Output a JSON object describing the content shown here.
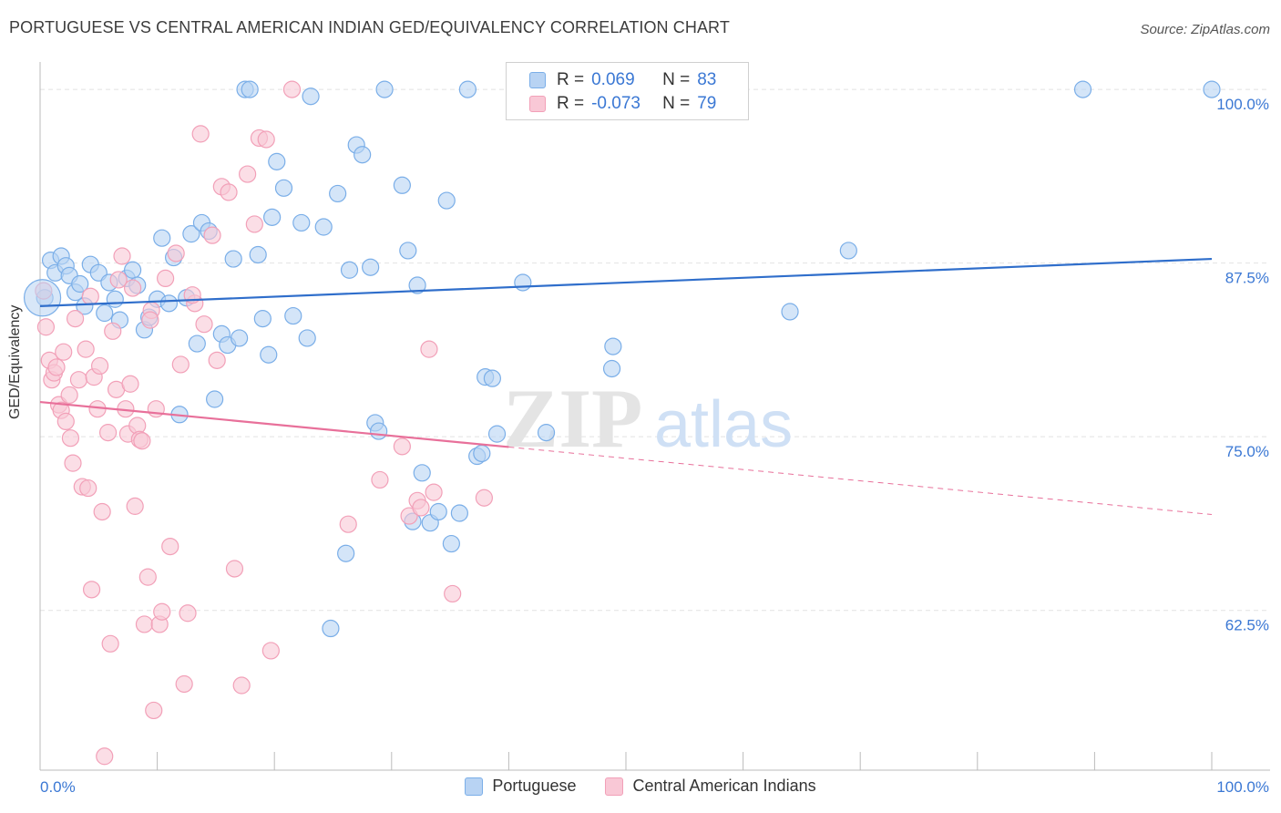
{
  "title": "PORTUGUESE VS CENTRAL AMERICAN INDIAN GED/EQUIVALENCY CORRELATION CHART",
  "source": "Source: ZipAtlas.com",
  "watermark": {
    "zip": "ZIP",
    "atlas": "atlas"
  },
  "legend_top": {
    "r_label": "R =",
    "n_label": "N =",
    "rows": [
      {
        "series": "Portuguese",
        "r": "0.069",
        "n": "83",
        "color": "#7aaee8"
      },
      {
        "series": "Central American Indians",
        "r": "-0.073",
        "n": "79",
        "color": "#f2a0b8"
      }
    ]
  },
  "colors": {
    "blue_fill": "#b8d3f3",
    "blue_stroke": "#7aaee8",
    "blue_line": "#2f6ecb",
    "pink_fill": "#f9c8d6",
    "pink_stroke": "#f2a0b8",
    "pink_line": "#e8709a",
    "tick_label": "#3b78d4",
    "grid": "#e2e2e2"
  },
  "chart_data": {
    "type": "scatter",
    "title": "PORTUGUESE VS CENTRAL AMERICAN INDIAN GED/EQUIVALENCY CORRELATION CHART",
    "xlabel": "",
    "ylabel": "GED/Equivalency",
    "xlim": [
      0,
      100
    ],
    "ylim": [
      51,
      102.5
    ],
    "x_tick_labels": [
      "0.0%",
      "100.0%"
    ],
    "y_ticks": [
      62.5,
      75.0,
      87.5,
      100.0
    ],
    "y_tick_labels": [
      "62.5%",
      "75.0%",
      "87.5%",
      "100.0%"
    ],
    "grid": true,
    "legend_position": "top-center",
    "series": [
      {
        "name": "Portuguese",
        "trend": {
          "x": [
            0,
            100
          ],
          "y": [
            84.4,
            87.8
          ],
          "dashed_from": null
        },
        "points": [
          [
            0.4,
            85.0
          ],
          [
            0.9,
            87.7
          ],
          [
            1.3,
            86.8
          ],
          [
            1.8,
            88.0
          ],
          [
            2.2,
            87.3
          ],
          [
            2.5,
            86.6
          ],
          [
            3.0,
            85.4
          ],
          [
            3.4,
            86.0
          ],
          [
            3.8,
            84.4
          ],
          [
            4.3,
            87.4
          ],
          [
            5.0,
            86.8
          ],
          [
            5.5,
            83.9
          ],
          [
            5.9,
            86.1
          ],
          [
            6.4,
            84.9
          ],
          [
            6.8,
            83.4
          ],
          [
            7.4,
            86.4
          ],
          [
            7.9,
            87.0
          ],
          [
            8.3,
            85.9
          ],
          [
            8.9,
            82.7
          ],
          [
            9.3,
            83.6
          ],
          [
            10.0,
            84.9
          ],
          [
            10.4,
            89.3
          ],
          [
            11.0,
            84.6
          ],
          [
            11.4,
            87.9
          ],
          [
            11.9,
            76.6
          ],
          [
            12.5,
            85.0
          ],
          [
            12.9,
            89.6
          ],
          [
            13.4,
            81.7
          ],
          [
            13.8,
            90.4
          ],
          [
            14.4,
            89.8
          ],
          [
            14.9,
            77.7
          ],
          [
            15.5,
            82.4
          ],
          [
            16.0,
            81.6
          ],
          [
            16.5,
            87.8
          ],
          [
            17.0,
            82.1
          ],
          [
            17.5,
            100.0
          ],
          [
            17.9,
            100.0
          ],
          [
            18.6,
            88.1
          ],
          [
            19.0,
            83.5
          ],
          [
            19.5,
            80.9
          ],
          [
            19.8,
            90.8
          ],
          [
            20.2,
            94.8
          ],
          [
            20.8,
            92.9
          ],
          [
            21.6,
            83.7
          ],
          [
            22.3,
            90.4
          ],
          [
            22.8,
            82.1
          ],
          [
            23.1,
            99.5
          ],
          [
            24.2,
            90.1
          ],
          [
            25.4,
            92.5
          ],
          [
            26.1,
            66.6
          ],
          [
            26.4,
            87.0
          ],
          [
            27.0,
            96.0
          ],
          [
            27.5,
            95.3
          ],
          [
            28.2,
            87.2
          ],
          [
            28.6,
            76.0
          ],
          [
            28.9,
            75.4
          ],
          [
            29.4,
            100.0
          ],
          [
            30.9,
            93.1
          ],
          [
            31.4,
            88.4
          ],
          [
            31.8,
            68.9
          ],
          [
            32.2,
            85.9
          ],
          [
            32.6,
            72.4
          ],
          [
            33.3,
            68.8
          ],
          [
            34.0,
            69.6
          ],
          [
            34.7,
            92.0
          ],
          [
            35.1,
            67.3
          ],
          [
            35.8,
            69.5
          ],
          [
            36.5,
            100.0
          ],
          [
            37.3,
            73.6
          ],
          [
            37.7,
            73.8
          ],
          [
            38.0,
            79.3
          ],
          [
            38.6,
            79.2
          ],
          [
            39.0,
            75.2
          ],
          [
            41.2,
            86.1
          ],
          [
            43.2,
            75.3
          ],
          [
            45.5,
            100.0
          ],
          [
            48.8,
            79.9
          ],
          [
            48.9,
            81.5
          ],
          [
            64.0,
            84.0
          ],
          [
            69.0,
            88.4
          ],
          [
            89.0,
            100.0
          ],
          [
            100.0,
            100.0
          ],
          [
            24.8,
            61.2
          ]
        ]
      },
      {
        "name": "Central American Indians",
        "trend": {
          "x": [
            0,
            100
          ],
          "y": [
            77.5,
            69.4
          ],
          "dashed_from": 40
        },
        "points": [
          [
            0.3,
            85.5
          ],
          [
            0.5,
            82.9
          ],
          [
            0.8,
            80.5
          ],
          [
            1.0,
            79.1
          ],
          [
            1.2,
            79.6
          ],
          [
            1.4,
            80.0
          ],
          [
            1.6,
            77.3
          ],
          [
            1.8,
            76.9
          ],
          [
            2.0,
            81.1
          ],
          [
            2.2,
            76.1
          ],
          [
            2.5,
            78.0
          ],
          [
            2.6,
            74.9
          ],
          [
            2.8,
            73.1
          ],
          [
            3.0,
            83.5
          ],
          [
            3.3,
            79.1
          ],
          [
            3.6,
            71.4
          ],
          [
            3.9,
            81.3
          ],
          [
            4.1,
            71.3
          ],
          [
            4.4,
            64.0
          ],
          [
            4.6,
            79.3
          ],
          [
            4.9,
            77.0
          ],
          [
            5.1,
            80.1
          ],
          [
            5.3,
            69.6
          ],
          [
            5.5,
            52.0
          ],
          [
            5.8,
            75.3
          ],
          [
            6.0,
            60.1
          ],
          [
            6.2,
            82.6
          ],
          [
            6.5,
            78.4
          ],
          [
            6.7,
            86.3
          ],
          [
            7.0,
            88.0
          ],
          [
            7.3,
            77.0
          ],
          [
            7.5,
            75.2
          ],
          [
            7.7,
            78.8
          ],
          [
            7.9,
            85.7
          ],
          [
            8.1,
            70.0
          ],
          [
            8.3,
            75.8
          ],
          [
            8.5,
            74.8
          ],
          [
            8.7,
            74.7
          ],
          [
            8.9,
            61.5
          ],
          [
            9.2,
            64.9
          ],
          [
            9.5,
            84.1
          ],
          [
            9.7,
            55.3
          ],
          [
            9.9,
            77.0
          ],
          [
            10.2,
            61.5
          ],
          [
            10.4,
            62.4
          ],
          [
            10.7,
            86.4
          ],
          [
            11.1,
            67.1
          ],
          [
            11.6,
            88.2
          ],
          [
            12.0,
            80.2
          ],
          [
            12.3,
            57.2
          ],
          [
            12.6,
            62.3
          ],
          [
            13.2,
            84.6
          ],
          [
            13.7,
            96.8
          ],
          [
            14.0,
            83.1
          ],
          [
            14.7,
            89.5
          ],
          [
            15.1,
            80.5
          ],
          [
            15.5,
            93.0
          ],
          [
            16.1,
            92.6
          ],
          [
            16.6,
            65.5
          ],
          [
            17.2,
            57.1
          ],
          [
            17.7,
            93.9
          ],
          [
            18.3,
            90.3
          ],
          [
            18.7,
            96.5
          ],
          [
            19.3,
            96.4
          ],
          [
            19.7,
            59.6
          ],
          [
            21.5,
            100.0
          ],
          [
            26.3,
            68.7
          ],
          [
            29.0,
            71.9
          ],
          [
            30.9,
            74.3
          ],
          [
            31.5,
            69.3
          ],
          [
            32.2,
            70.4
          ],
          [
            32.5,
            69.9
          ],
          [
            33.6,
            71.0
          ],
          [
            33.2,
            81.3
          ],
          [
            35.2,
            63.7
          ],
          [
            37.9,
            70.6
          ],
          [
            13.0,
            85.2
          ],
          [
            9.4,
            83.4
          ],
          [
            4.3,
            85.1
          ]
        ]
      }
    ],
    "legend": [
      {
        "name": "Portuguese",
        "r": 0.069,
        "n": 83
      },
      {
        "name": "Central American Indians",
        "r": -0.073,
        "n": 79
      }
    ]
  }
}
